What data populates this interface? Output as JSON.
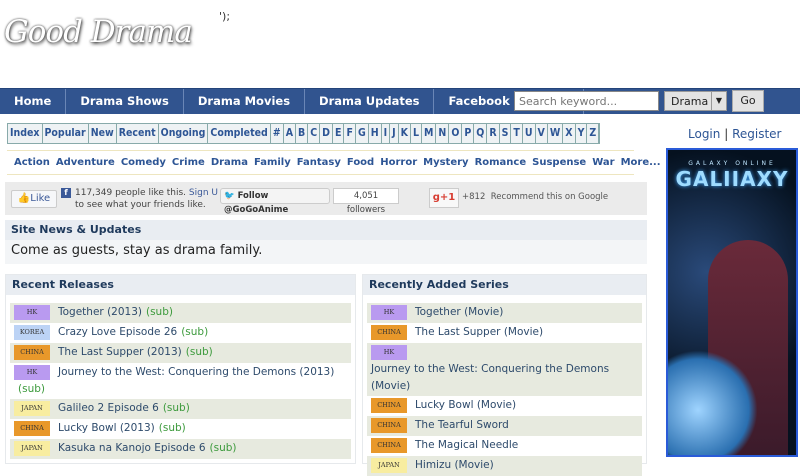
{
  "logo": "Good Drama",
  "stray_text": "');",
  "nav": [
    "Home",
    "Drama Shows",
    "Drama Movies",
    "Drama Updates",
    "Facebook Fanpage"
  ],
  "search": {
    "placeholder": "Search keyword...",
    "category": "Drama",
    "go": "Go"
  },
  "alpha": [
    "Index",
    "Popular",
    "New",
    "Recent",
    "Ongoing",
    "Completed",
    "#",
    "A",
    "B",
    "C",
    "D",
    "E",
    "F",
    "G",
    "H",
    "I",
    "J",
    "K",
    "L",
    "M",
    "N",
    "O",
    "P",
    "Q",
    "R",
    "S",
    "T",
    "U",
    "V",
    "W",
    "X",
    "Y",
    "Z"
  ],
  "genres": [
    "Action",
    "Adventure",
    "Comedy",
    "Crime",
    "Drama",
    "Family",
    "Fantasy",
    "Food",
    "Horror",
    "Mystery",
    "Romance",
    "Suspense",
    "War",
    "More..."
  ],
  "social": {
    "like": "Like",
    "fb_text": "117,349 people like this.",
    "sign_up": "Sign U",
    "fb_text2": "to see what your friends like.",
    "twitter": "Follow @GoGoAnime",
    "followers": "4,051 followers",
    "gplus": "+1",
    "gcount": "+812",
    "recommend": "Recommend this on Google"
  },
  "news": {
    "title": "Site News & Updates",
    "text": "Come as guests, stay as drama family."
  },
  "auth": {
    "login": "Login",
    "sep": "|",
    "register": "Register"
  },
  "ad": {
    "top": "GALAXY ONLINE",
    "title": "GALIIAXY"
  },
  "badge_colors": {
    "HK": "#b99af0",
    "KOREA": "#bcd3f5",
    "CHINA": "#e8982a",
    "JAPAN": "#f8eda0"
  },
  "recent_releases": {
    "title": "Recent Releases",
    "items": [
      {
        "badge": "HK",
        "title": "Together (2013)",
        "tag": "(sub)"
      },
      {
        "badge": "KOREA",
        "title": "Crazy Love Episode 26",
        "tag": "(sub)"
      },
      {
        "badge": "CHINA",
        "title": "The Last Supper (2013)",
        "tag": "(sub)"
      },
      {
        "badge": "HK",
        "title": "Journey to the West: Conquering the Demons (2013)",
        "tag": "(sub)"
      },
      {
        "badge": "JAPAN",
        "title": "Galileo 2 Episode 6",
        "tag": "(sub)"
      },
      {
        "badge": "CHINA",
        "title": "Lucky Bowl (2013)",
        "tag": "(sub)"
      },
      {
        "badge": "JAPAN",
        "title": "Kasuka na Kanojo Episode 6",
        "tag": "(sub)"
      }
    ]
  },
  "recent_series": {
    "title": "Recently Added Series",
    "items": [
      {
        "badge": "HK",
        "title": "Together (Movie)"
      },
      {
        "badge": "CHINA",
        "title": "The Last Supper (Movie)"
      },
      {
        "badge": "HK",
        "title": "Journey to the West: Conquering the Demons (Movie)"
      },
      {
        "badge": "CHINA",
        "title": "Lucky Bowl (Movie)"
      },
      {
        "badge": "CHINA",
        "title": "The Tearful Sword"
      },
      {
        "badge": "CHINA",
        "title": "The Magical Needle"
      },
      {
        "badge": "JAPAN",
        "title": "Himizu (Movie)"
      }
    ]
  }
}
